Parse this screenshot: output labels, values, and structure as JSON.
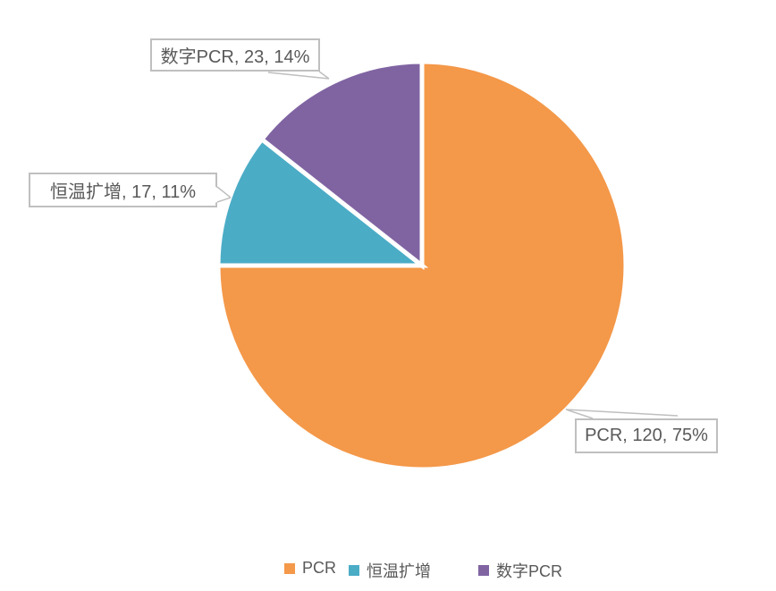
{
  "chart_data": {
    "type": "pie",
    "title": "",
    "legend_position": "bottom",
    "direction": "clockwise",
    "start_angle_deg": 0,
    "slices": [
      {
        "name": "pcr",
        "label": "PCR",
        "value": 120,
        "percent": "75%",
        "color": "#F49849",
        "callout": "PCR, 120, 75%"
      },
      {
        "name": "isothermal-amplification",
        "label": "恒温扩增",
        "value": 17,
        "percent": "11%",
        "color": "#4BACC6",
        "callout": "恒温扩增, 17, 11%"
      },
      {
        "name": "digital-pcr",
        "label": "数字PCR",
        "value": 23,
        "percent": "14%",
        "color": "#8064A2",
        "callout": "数字PCR, 23, 14%"
      }
    ],
    "colors": {
      "background": "#FFFFFF",
      "separator": "#FFFFFF",
      "callout_border": "#BFBFBF",
      "callout_text": "#595959",
      "legend_text": "#595959"
    }
  }
}
